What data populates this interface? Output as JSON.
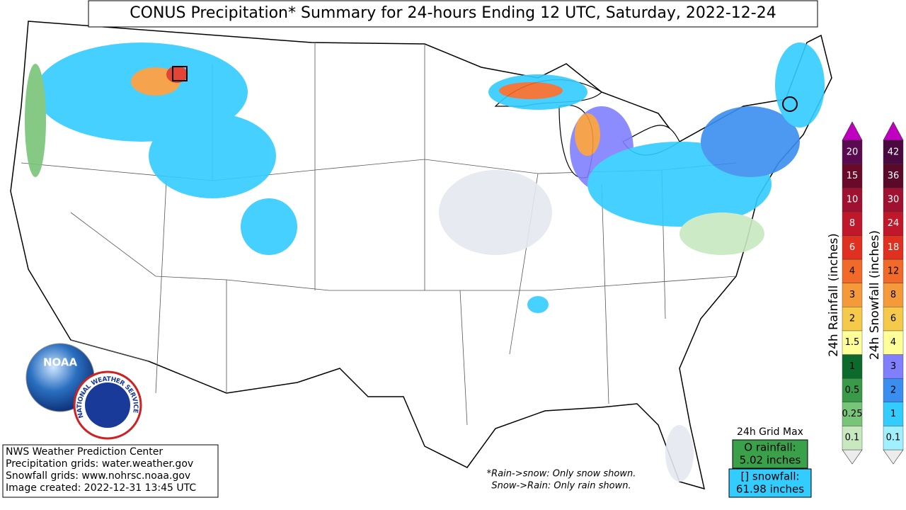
{
  "title": "CONUS Precipitation* Summary for 24-hours Ending 12 UTC, Saturday, 2022-12-24",
  "info_box": [
    "NWS Weather Prediction Center",
    "Precipitation grids: water.weather.gov",
    "Snowfall grids: www.nohrsc.noaa.gov",
    "Image created: 2022-12-31 13:45 UTC"
  ],
  "grid_max": {
    "title": "24h Grid Max",
    "rainfall": {
      "label": "O rainfall:",
      "value": "5.02 inches"
    },
    "snowfall": {
      "label": "[] snowfall:",
      "value": "61.98 inches"
    }
  },
  "notes": [
    "*Rain->snow: Only snow shown.",
    "Snow->Rain: Only rain shown."
  ],
  "logos": {
    "noaa": "NOAA",
    "nws": "NATIONAL WEATHER SERVICE"
  },
  "colorbars": [
    {
      "label": "24h Rainfall (inches)",
      "ticks": [
        "0.1",
        "0.25",
        "0.5",
        "1",
        "1.5",
        "2",
        "3",
        "4",
        "6",
        "8",
        "10",
        "15",
        "20"
      ],
      "colors": [
        "#c8e8c0",
        "#78c478",
        "#3a9a4a",
        "#0b6a2c",
        "#ffff99",
        "#f5c94a",
        "#f59a3a",
        "#f26a2a",
        "#e03020",
        "#c0182a",
        "#a01030",
        "#6a0a28",
        "#5a0a50"
      ]
    },
    {
      "label": "24h Snowfall (inches)",
      "ticks": [
        "0.1",
        "1",
        "2",
        "3",
        "4",
        "6",
        "8",
        "12",
        "18",
        "24",
        "30",
        "36",
        "42"
      ],
      "colors": [
        "#a0f0ff",
        "#33ccff",
        "#3a8ef0",
        "#8080ff",
        "#ffff99",
        "#f5c94a",
        "#f59a3a",
        "#f26a2a",
        "#e03020",
        "#c0182a",
        "#a01030",
        "#5a0a28",
        "#4a0a40"
      ]
    }
  ]
}
